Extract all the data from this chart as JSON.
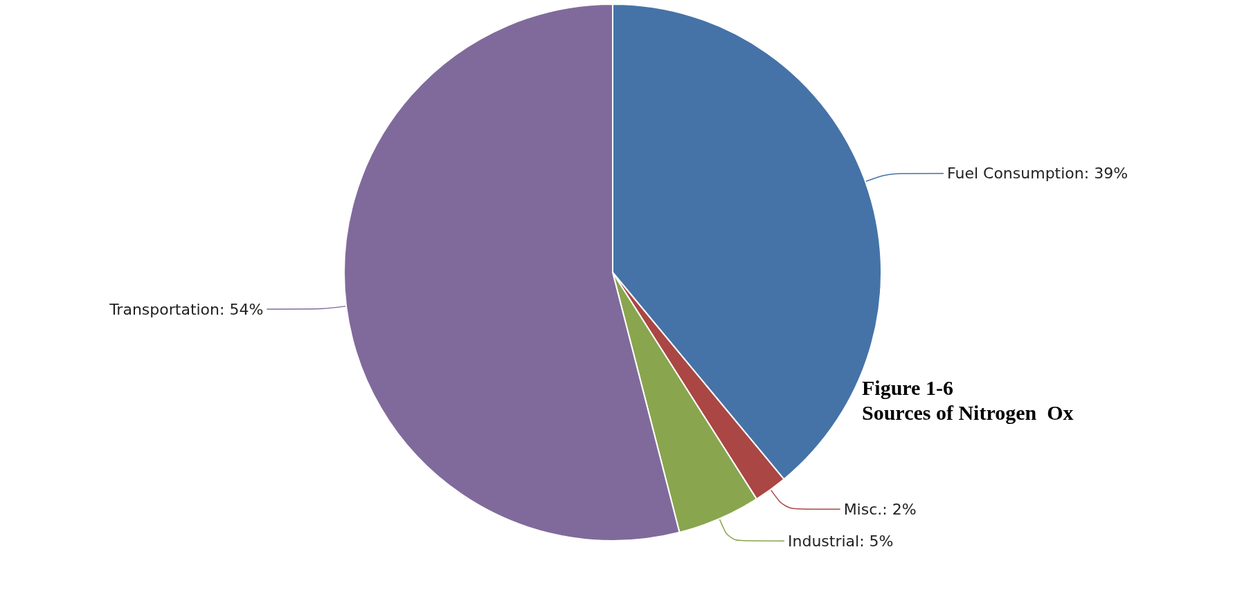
{
  "chart_data": {
    "type": "pie",
    "title": "Figure 1-6",
    "subtitle": "Sources of Nitrogen  Ox",
    "categories": [
      "Fuel Consumption",
      "Misc.",
      "Industrial",
      "Transportation"
    ],
    "values": [
      39,
      2,
      5,
      54
    ],
    "value_labels": [
      "39%",
      "2%",
      "5%",
      "54%"
    ],
    "colors": [
      "#4573a7",
      "#aa4643",
      "#89a54e",
      "#806a9b"
    ],
    "legend": false
  }
}
